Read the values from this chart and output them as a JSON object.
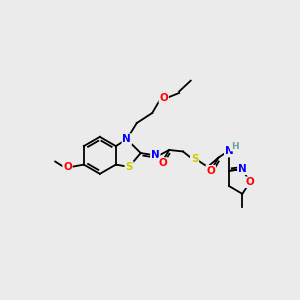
{
  "bg_color": "#ebebeb",
  "bond_color": "#000000",
  "atom_colors": {
    "N": "#0000ff",
    "O": "#ff0000",
    "S": "#cccc00",
    "H": "#70a0a0",
    "C": "#000000"
  },
  "figsize": [
    3.0,
    3.0
  ],
  "dpi": 100,
  "lw": 1.3,
  "fs": 7.0
}
